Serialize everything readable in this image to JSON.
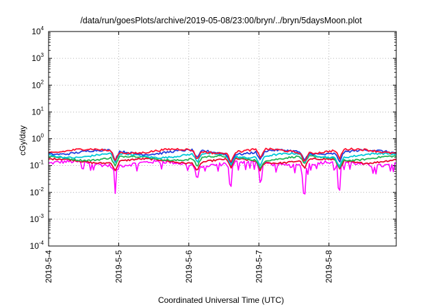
{
  "chart_data": {
    "type": "line",
    "title": "/data/run/goesPlots/archive/2019-05-08/23:00/bryn/../bryn/5daysMoon.plot",
    "xlabel": "Coordinated Universal Time (UTC)",
    "ylabel": "cGy/day",
    "yscale": "log",
    "ylim": [
      0.0001,
      10000
    ],
    "xlim": [
      0,
      4.96
    ],
    "y_ticks": [
      {
        "base": "10",
        "exp": "-4",
        "value": 0.0001
      },
      {
        "base": "10",
        "exp": "-3",
        "value": 0.001
      },
      {
        "base": "10",
        "exp": "-2",
        "value": 0.01
      },
      {
        "base": "10",
        "exp": "-1",
        "value": 0.1
      },
      {
        "base": "10",
        "exp": "0",
        "value": 1
      },
      {
        "base": "10",
        "exp": "1",
        "value": 10
      },
      {
        "base": "10",
        "exp": "2",
        "value": 100
      },
      {
        "base": "10",
        "exp": "3",
        "value": 1000
      },
      {
        "base": "10",
        "exp": "4",
        "value": 10000
      }
    ],
    "x_ticks": [
      {
        "label": "2019-5-4",
        "value": 0
      },
      {
        "label": "2019-5-5",
        "value": 1
      },
      {
        "label": "2019-5-6",
        "value": 2
      },
      {
        "label": "2019-5-7",
        "value": 3
      },
      {
        "label": "2019-5-8",
        "value": 4
      }
    ],
    "grid": true,
    "series": [
      {
        "color": "#ff00ff",
        "level": 0.12,
        "spiky": true,
        "spread": 0.3
      },
      {
        "color": "#e8002a",
        "level": 0.15,
        "spiky": false,
        "spread": 0.15
      },
      {
        "color": "#22b455",
        "level": 0.19,
        "spiky": false,
        "spread": 0.15
      },
      {
        "color": "#00c8d8",
        "level": 0.24,
        "spiky": false,
        "spread": 0.15
      },
      {
        "color": "#2040e0",
        "level": 0.32,
        "spiky": false,
        "spread": 0.18
      },
      {
        "color": "#ff1030",
        "level": 0.35,
        "spiky": false,
        "spread": 0.18
      }
    ],
    "dips": [
      {
        "x": 0.95,
        "min": 0.02
      },
      {
        "x": 2.12,
        "min": 0.07
      },
      {
        "x": 2.6,
        "min": 0.035
      },
      {
        "x": 3.02,
        "min": 0.05
      },
      {
        "x": 3.65,
        "min": 0.017
      },
      {
        "x": 4.15,
        "min": 0.025
      }
    ]
  }
}
